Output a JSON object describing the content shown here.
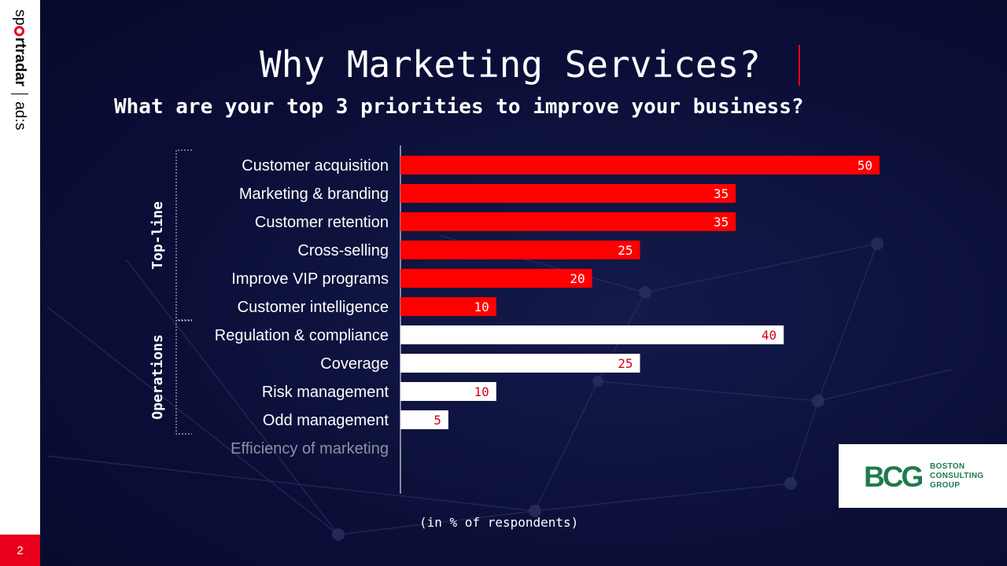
{
  "sidebar": {
    "brand_sport": "sp",
    "brand_rt": "rtradar",
    "brand_ads": "ad:s",
    "page_number": "2"
  },
  "title": "Why Marketing Services?",
  "subtitle": "What are your top 3 priorities to improve your business?",
  "unit_note": "(in % of respondents)",
  "logo": {
    "mark": "BCG",
    "line1": "BOSTON",
    "line2": "CONSULTING",
    "line3": "GROUP"
  },
  "colors": {
    "red": "#ff0000",
    "white": "#ffffff",
    "label_red": "#d6001c",
    "muted": "#8d90a6"
  },
  "chart_data": {
    "type": "bar",
    "orientation": "horizontal",
    "xlim": [
      0,
      50
    ],
    "grid": false,
    "groups": [
      {
        "label": "Top-line",
        "color": "red"
      },
      {
        "label": "Operations",
        "color": "white"
      }
    ],
    "categories": [
      "Customer acquisition",
      "Marketing & branding",
      "Customer retention",
      "Cross-selling",
      "Improve VIP programs",
      "Customer intelligence",
      "Regulation & compliance",
      "Coverage",
      "Risk management",
      "Odd management",
      "Efficiency of marketing"
    ],
    "values": [
      50,
      35,
      35,
      25,
      20,
      10,
      40,
      25,
      10,
      5,
      null
    ],
    "group_index": [
      0,
      0,
      0,
      0,
      0,
      0,
      1,
      1,
      1,
      1,
      null
    ]
  }
}
